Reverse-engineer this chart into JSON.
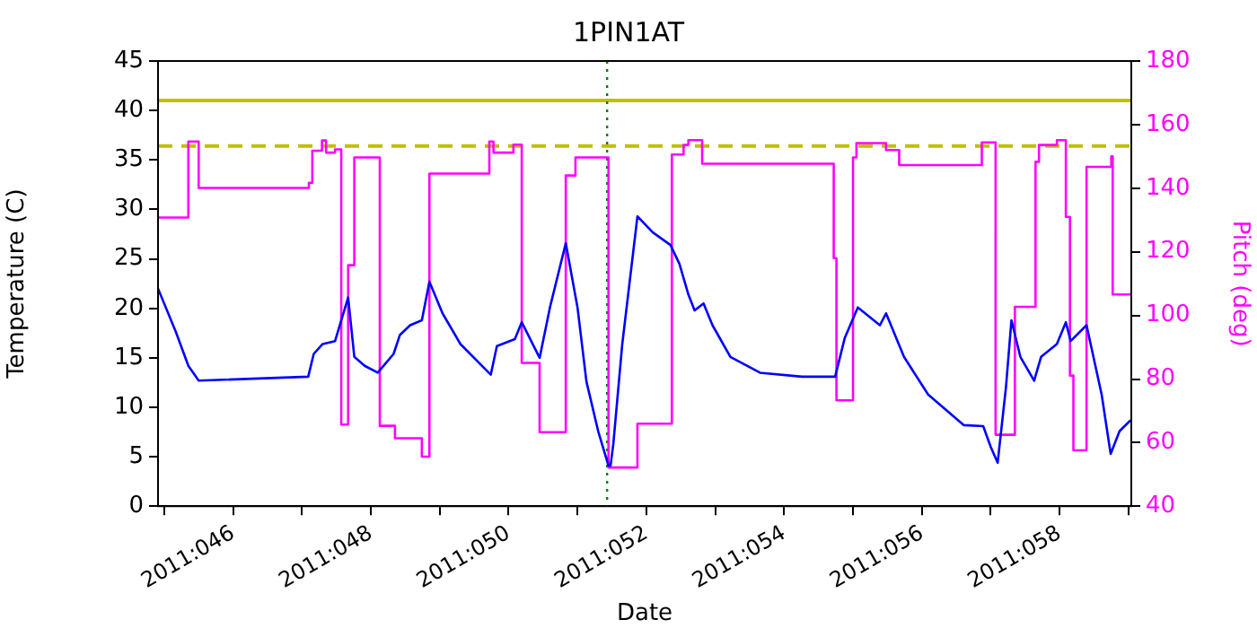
{
  "chart_data": {
    "type": "line",
    "title": "1PIN1AT",
    "xlabel": "Date",
    "ylabel": "Temperature (C)",
    "y2label": "Pitch (deg)",
    "xlim": [
      "2011-02-13T21:50",
      "2011-02-28T00:58"
    ],
    "xticks": [
      {
        "value": "2011-02-14",
        "label": null
      },
      {
        "value": "2011-02-15",
        "label": "2011:046"
      },
      {
        "value": "2011-02-16",
        "label": null
      },
      {
        "value": "2011-02-17",
        "label": "2011:048"
      },
      {
        "value": "2011-02-18",
        "label": null
      },
      {
        "value": "2011-02-19",
        "label": "2011:050"
      },
      {
        "value": "2011-02-20",
        "label": null
      },
      {
        "value": "2011-02-21",
        "label": "2011:052"
      },
      {
        "value": "2011-02-22",
        "label": null
      },
      {
        "value": "2011-02-23",
        "label": "2011:054"
      },
      {
        "value": "2011-02-24",
        "label": null
      },
      {
        "value": "2011-02-25",
        "label": "2011:056"
      },
      {
        "value": "2011-02-26",
        "label": null
      },
      {
        "value": "2011-02-27",
        "label": "2011:058"
      },
      {
        "value": "2011-02-28",
        "label": null
      }
    ],
    "ylim": [
      0,
      45
    ],
    "yticks": [
      0,
      5,
      10,
      15,
      20,
      25,
      30,
      35,
      40,
      45
    ],
    "y2lim": [
      40,
      180
    ],
    "y2ticks": [
      40,
      60,
      80,
      100,
      120,
      140,
      160,
      180
    ],
    "grid": false,
    "legend": false,
    "marker": "none",
    "ref_lines": [
      {
        "axis": "y",
        "value": 41,
        "color": "#bfbf00",
        "line_style": "solid"
      },
      {
        "axis": "y",
        "value": 36.4,
        "color": "#bfbf00",
        "line_style": "dashed"
      },
      {
        "axis": "x",
        "value": "2011-02-20T10:19",
        "color": "#008000",
        "line_style": "dotted"
      }
    ],
    "series": [
      {
        "type": "line",
        "color": "#0000ff",
        "x": [
          "2011-02-13T21:50",
          "2011-02-14T04:05",
          "2011-02-14T08:24",
          "2011-02-14T12:00",
          "2011-02-16T02:10",
          "2011-02-16T04:05",
          "2011-02-16T07:12",
          "2011-02-16T11:31",
          "2011-02-16T16:05",
          "2011-02-16T18:14",
          "2011-02-16T21:50",
          "2011-02-17T02:24",
          "2011-02-17T07:55",
          "2011-02-17T10:05",
          "2011-02-17T13:41",
          "2011-02-17T17:46",
          "2011-02-17T20:24",
          "2011-02-18T00:58",
          "2011-02-18T07:12",
          "2011-02-18T17:46",
          "2011-02-18T19:55",
          "2011-02-19T02:10",
          "2011-02-19T04:34",
          "2011-02-19T10:48",
          "2011-02-19T14:24",
          "2011-02-19T19:55",
          "2011-02-20T00:00",
          "2011-02-20T03:07",
          "2011-02-20T07:12",
          "2011-02-20T10:48",
          "2011-02-20T11:31",
          "2011-02-20T12:29",
          "2011-02-20T15:36",
          "2011-02-20T20:53",
          "2011-02-21T02:10",
          "2011-02-21T08:24",
          "2011-02-21T11:31",
          "2011-02-21T14:38",
          "2011-02-21T16:48",
          "2011-02-21T19:55",
          "2011-02-21T23:02",
          "2011-02-22T05:17",
          "2011-02-22T15:36",
          "2011-02-23T06:14",
          "2011-02-23T17:46",
          "2011-02-23T21:07",
          "2011-02-24T01:41",
          "2011-02-24T09:22",
          "2011-02-24T11:31",
          "2011-02-24T17:46",
          "2011-02-25T02:10",
          "2011-02-25T14:38",
          "2011-02-25T21:22",
          "2011-02-26T00:00",
          "2011-02-26T02:24",
          "2011-02-26T05:17",
          "2011-02-26T07:12",
          "2011-02-26T10:19",
          "2011-02-26T15:07",
          "2011-02-26T17:31",
          "2011-02-26T23:02",
          "2011-02-27T02:10",
          "2011-02-27T03:50",
          "2011-02-27T09:22",
          "2011-02-27T14:38",
          "2011-02-27T17:46",
          "2011-02-27T20:53",
          "2011-02-28T00:43"
        ],
        "values": [
          22.0,
          17.6,
          14.2,
          12.7,
          13.1,
          15.4,
          16.4,
          16.7,
          21.1,
          15.1,
          14.2,
          13.5,
          15.4,
          17.3,
          18.3,
          18.8,
          22.7,
          19.5,
          16.4,
          13.3,
          16.2,
          16.9,
          18.6,
          15.0,
          20.1,
          26.6,
          20.1,
          12.6,
          7.6,
          4.1,
          4.1,
          6.3,
          16.4,
          29.3,
          27.7,
          26.4,
          24.5,
          21.4,
          19.8,
          20.5,
          18.3,
          15.1,
          13.5,
          13.1,
          13.1,
          17.0,
          20.1,
          18.3,
          19.5,
          15.1,
          11.3,
          8.2,
          8.1,
          6.0,
          4.4,
          12.0,
          18.8,
          15.1,
          12.7,
          15.1,
          16.4,
          18.6,
          16.7,
          18.3,
          11.3,
          5.3,
          7.6,
          8.7
        ]
      },
      {
        "type": "step",
        "axis": "y2",
        "color": "#ff00ff",
        "x": [
          "2011-02-13T21:50",
          "2011-02-14T08:24",
          "2011-02-14T12:00",
          "2011-02-16T02:24",
          "2011-02-16T03:36",
          "2011-02-16T06:58",
          "2011-02-16T08:24",
          "2011-02-16T11:31",
          "2011-02-16T13:41",
          "2011-02-16T16:05",
          "2011-02-16T18:14",
          "2011-02-17T03:07",
          "2011-02-17T08:24",
          "2011-02-17T17:46",
          "2011-02-17T20:24",
          "2011-02-18T17:17",
          "2011-02-18T18:43",
          "2011-02-19T01:41",
          "2011-02-19T04:34",
          "2011-02-19T10:48",
          "2011-02-19T19:55",
          "2011-02-19T23:17",
          "2011-02-20T10:48",
          "2011-02-20T20:53",
          "2011-02-21T08:53",
          "2011-02-21T12:58",
          "2011-02-21T14:38",
          "2011-02-21T19:26",
          "2011-02-23T17:17",
          "2011-02-23T18:14",
          "2011-02-24T00:00",
          "2011-02-24T01:12",
          "2011-02-24T11:31",
          "2011-02-24T16:05",
          "2011-02-25T20:53",
          "2011-02-26T01:41",
          "2011-02-26T08:24",
          "2011-02-26T15:36",
          "2011-02-26T16:48",
          "2011-02-26T23:02",
          "2011-02-27T02:10",
          "2011-02-27T03:36",
          "2011-02-27T04:48",
          "2011-02-27T09:22",
          "2011-02-27T18:00",
          "2011-02-27T18:29",
          "2011-02-28T00:58"
        ],
        "values": [
          130.8,
          154.7,
          140.1,
          141.7,
          151.8,
          155.0,
          151.2,
          152.2,
          65.7,
          115.8,
          149.7,
          65.3,
          61.4,
          55.6,
          144.6,
          154.7,
          151.2,
          153.7,
          85.1,
          63.3,
          144.0,
          149.7,
          52.2,
          66.0,
          150.6,
          153.6,
          155.1,
          147.7,
          118.0,
          73.3,
          149.7,
          154.2,
          152.0,
          147.3,
          154.4,
          62.5,
          102.7,
          148.3,
          153.6,
          155.1,
          131.0,
          81.1,
          57.6,
          146.7,
          150.0,
          106.6,
          106.6
        ]
      }
    ]
  }
}
